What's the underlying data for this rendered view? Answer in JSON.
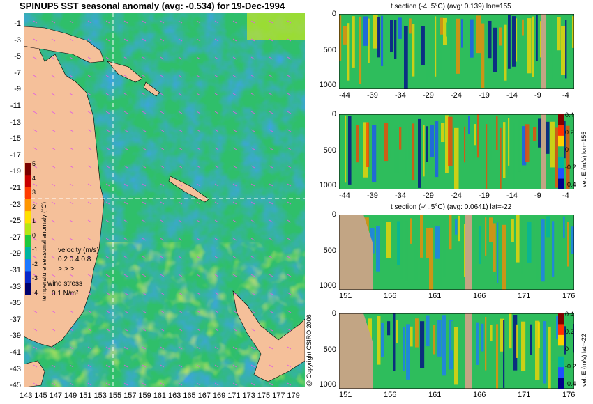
{
  "map_title": "SPINUP5 SST seasonal anomaly (avg: -0.534) for 19-Dec-1994",
  "map": {
    "lat_labels": [
      "-1",
      "-3",
      "-5",
      "-7",
      "-9",
      "-11",
      "-13",
      "-15",
      "-17",
      "-19",
      "-21",
      "-23",
      "-25",
      "-27",
      "-29",
      "-31",
      "-33",
      "-35",
      "-37",
      "-39",
      "-41",
      "-43",
      "-45"
    ],
    "lon_labels": [
      "143",
      "145",
      "147",
      "149",
      "151",
      "153",
      "155",
      "157",
      "159",
      "161",
      "163",
      "165",
      "167",
      "169",
      "171",
      "173",
      "175",
      "177",
      "179"
    ],
    "colorbar": {
      "label": "temperature seasonal anomaly (°C)",
      "ticks": [
        "5",
        "4",
        "3",
        "2",
        "1",
        "0",
        "-1",
        "-2",
        "-3",
        "-4"
      ],
      "colors": [
        "#7a0000",
        "#c80000",
        "#ff3c00",
        "#ff9600",
        "#ffe000",
        "#b4e614",
        "#1ec83c",
        "#00b4a0",
        "#1e78ff",
        "#0a28c8",
        "#00006e"
      ]
    },
    "velocity_legend": {
      "title": "velocity (m/s)",
      "values": "0.2 0.4 0.8"
    },
    "wind_legend": {
      "title": "wind stress",
      "value": "0.1 N/m²"
    },
    "land_color": "#f5c09a",
    "ocean_base": "#38c06a",
    "guide_color": "#ffffff"
  },
  "panels": [
    {
      "title": "t section (-4..5°C) (avg: 0.139) lon=155",
      "x_labels": [
        "-44",
        "-39",
        "-34",
        "-29",
        "-24",
        "-19",
        "-14",
        "-9",
        "-4"
      ],
      "y_labels": [
        "0",
        "500",
        "1000"
      ],
      "colorbar": null
    },
    {
      "title": "",
      "x_labels": [
        "-44",
        "-39",
        "-34",
        "-29",
        "-24",
        "-19",
        "-14",
        "-9",
        "-4"
      ],
      "y_labels": [
        "0",
        "500",
        "1000"
      ],
      "colorbar": {
        "label": "vel. E (m/s) lon=155",
        "ticks": [
          "0.4",
          "0.2",
          "0",
          "-0.2",
          "-0.4"
        ]
      }
    },
    {
      "title": "t section (-4..5°C) (avg: 0.0641) lat=-22",
      "x_labels": [
        "151",
        "156",
        "161",
        "166",
        "171",
        "176"
      ],
      "y_labels": [
        "0",
        "500",
        "1000"
      ],
      "colorbar": null
    },
    {
      "title": "",
      "x_labels": [
        "151",
        "156",
        "161",
        "166",
        "171",
        "176"
      ],
      "y_labels": [
        "0",
        "500",
        "1000"
      ],
      "colorbar": {
        "label": "vel. E (m/s) lat=-22",
        "ticks": [
          "0.4",
          "0.2",
          "0",
          "-0.2",
          "-0.4"
        ]
      }
    }
  ],
  "copyright": "@ Copyright CSIRO 2006"
}
